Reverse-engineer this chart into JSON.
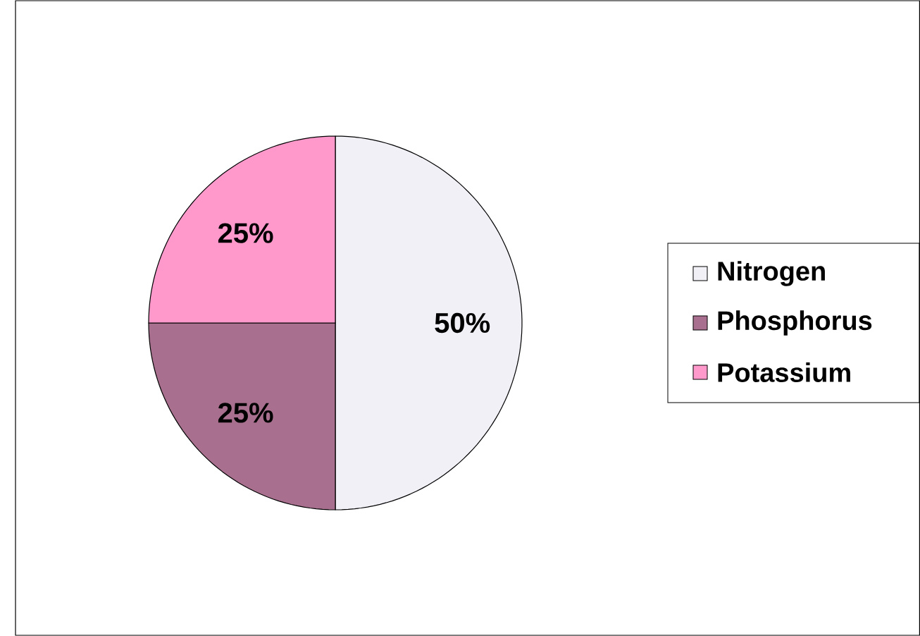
{
  "chart_data": {
    "type": "pie",
    "categories": [
      "Nitrogen",
      "Phosphorus",
      "Potassium"
    ],
    "values": [
      50,
      25,
      25
    ],
    "colors": [
      "#f0f0f6",
      "#a8708e",
      "#ff99cc"
    ],
    "value_labels": [
      "50%",
      "25%",
      "25%"
    ],
    "legend": "right"
  }
}
